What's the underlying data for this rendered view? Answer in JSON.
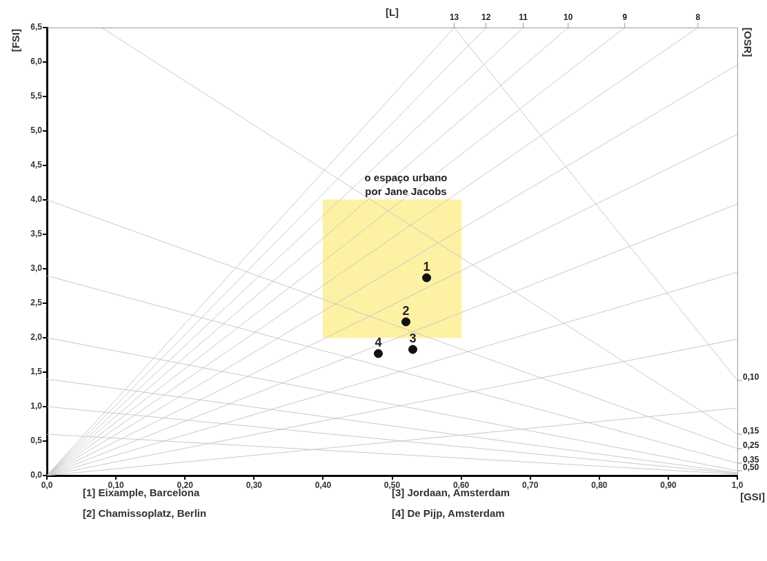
{
  "chart_data": {
    "type": "scatter",
    "xlabel": "[GSI]",
    "ylabel": "[FSI]",
    "x2label": "[L]",
    "y2label": "[OSR]",
    "xlim": [
      0,
      1
    ],
    "ylim": [
      0,
      6.5
    ],
    "xticks": [
      {
        "value": 0,
        "label": "0,0"
      },
      {
        "value": 0.1,
        "label": "0,10"
      },
      {
        "value": 0.2,
        "label": "0,20"
      },
      {
        "value": 0.3,
        "label": "0,30"
      },
      {
        "value": 0.4,
        "label": "0,40"
      },
      {
        "value": 0.5,
        "label": "0,50"
      },
      {
        "value": 0.6,
        "label": "0,60"
      },
      {
        "value": 0.7,
        "label": "0,70"
      },
      {
        "value": 0.8,
        "label": "0,80"
      },
      {
        "value": 0.9,
        "label": "0,90"
      },
      {
        "value": 1,
        "label": "1,0"
      }
    ],
    "yticks": [
      {
        "value": 0,
        "label": "0,0"
      },
      {
        "value": 0.5,
        "label": "0,5"
      },
      {
        "value": 1,
        "label": "1,0"
      },
      {
        "value": 1.5,
        "label": "1,5"
      },
      {
        "value": 2,
        "label": "2,0"
      },
      {
        "value": 2.5,
        "label": "2,5"
      },
      {
        "value": 3,
        "label": "3,0"
      },
      {
        "value": 3.5,
        "label": "3,5"
      },
      {
        "value": 4,
        "label": "4,0"
      },
      {
        "value": 4.5,
        "label": "4,5"
      },
      {
        "value": 5,
        "label": "5,0"
      },
      {
        "value": 5.5,
        "label": "5,5"
      },
      {
        "value": 6,
        "label": "6,0"
      },
      {
        "value": 6.5,
        "label": "6,5"
      }
    ],
    "series": [
      {
        "type": "area",
        "color": "#fdf2a3",
        "x": [
          0.4,
          0.4,
          0.6,
          0.6,
          0.4
        ],
        "values": [
          2,
          4,
          4,
          2,
          2
        ]
      },
      {
        "type": "line",
        "color": "#c8c8c8",
        "marker": "none",
        "x": [
          0,
          0.59
        ],
        "values": [
          0,
          6.5
        ]
      },
      {
        "type": "line",
        "color": "#c8c8c8",
        "marker": "none",
        "x": [
          0,
          0.636
        ],
        "values": [
          0,
          6.5
        ]
      },
      {
        "type": "line",
        "color": "#c8c8c8",
        "marker": "none",
        "x": [
          0,
          0.69
        ],
        "values": [
          0,
          6.5
        ]
      },
      {
        "type": "line",
        "color": "#c8c8c8",
        "marker": "none",
        "x": [
          0,
          0.755
        ],
        "values": [
          0,
          6.5
        ]
      },
      {
        "type": "line",
        "color": "#c8c8c8",
        "marker": "none",
        "x": [
          0,
          0.837
        ],
        "values": [
          0,
          6.5
        ]
      },
      {
        "type": "line",
        "color": "#c8c8c8",
        "marker": "none",
        "x": [
          0,
          0.943
        ],
        "values": [
          0,
          6.5
        ]
      },
      {
        "type": "line",
        "color": "#c8c8c8",
        "marker": "none",
        "x": [
          0,
          1
        ],
        "values": [
          0,
          5.96
        ]
      },
      {
        "type": "line",
        "color": "#c8c8c8",
        "marker": "none",
        "x": [
          0,
          1
        ],
        "values": [
          0,
          4.95
        ]
      },
      {
        "type": "line",
        "color": "#c8c8c8",
        "marker": "none",
        "x": [
          0,
          1
        ],
        "values": [
          0,
          3.94
        ]
      },
      {
        "type": "line",
        "color": "#c8c8c8",
        "marker": "none",
        "x": [
          0,
          1
        ],
        "values": [
          0,
          2.95
        ]
      },
      {
        "type": "line",
        "color": "#c8c8c8",
        "marker": "none",
        "x": [
          0,
          1
        ],
        "values": [
          0,
          1.98
        ]
      },
      {
        "type": "line",
        "color": "#c8c8c8",
        "marker": "none",
        "x": [
          0,
          1
        ],
        "values": [
          0,
          0.98
        ]
      },
      {
        "type": "line",
        "color": "#c8c8c8",
        "marker": "none",
        "x": [
          0.079,
          1
        ],
        "values": [
          6.5,
          0.6
        ]
      },
      {
        "type": "line",
        "color": "#c8c8c8",
        "marker": "none",
        "x": [
          0.59,
          1
        ],
        "values": [
          6.5,
          1.38
        ]
      },
      {
        "type": "line",
        "color": "#c8c8c8",
        "marker": "none",
        "x": [
          0,
          1
        ],
        "values": [
          4,
          0.39
        ]
      },
      {
        "type": "line",
        "color": "#c8c8c8",
        "marker": "none",
        "x": [
          0,
          1
        ],
        "values": [
          2.9,
          0.18
        ]
      },
      {
        "type": "line",
        "color": "#c8c8c8",
        "marker": "none",
        "x": [
          0,
          1
        ],
        "values": [
          2,
          0.07
        ]
      },
      {
        "type": "line",
        "color": "#c8c8c8",
        "marker": "none",
        "x": [
          0,
          1
        ],
        "values": [
          1.4,
          0.04
        ]
      },
      {
        "type": "line",
        "color": "#c8c8c8",
        "marker": "none",
        "x": [
          0,
          1
        ],
        "values": [
          1,
          0.03
        ]
      },
      {
        "type": "line",
        "color": "#c8c8c8",
        "marker": "none",
        "x": [
          0,
          1
        ],
        "values": [
          0.6,
          0.02
        ]
      },
      {
        "color": "#111111",
        "marker": "circle",
        "x": [
          0.55,
          0.52,
          0.53,
          0.48
        ],
        "values": [
          2.87,
          2.23,
          1.83,
          1.77
        ]
      }
    ],
    "annotations": [
      {
        "text": "o espaço urbano\npor Jane Jacobs",
        "x": 0.52,
        "y": 4
      },
      {
        "text": "1",
        "x": 0.55,
        "y": 2.87
      },
      {
        "text": "2",
        "x": 0.52,
        "y": 2.23
      },
      {
        "text": "3",
        "x": 0.53,
        "y": 1.83
      },
      {
        "text": "4",
        "x": 0.48,
        "y": 1.77
      },
      {
        "text": "13",
        "x": 0.59,
        "y": 6.5
      },
      {
        "text": "12",
        "x": 0.636,
        "y": 6.5
      },
      {
        "text": "11",
        "x": 0.69,
        "y": 6.5
      },
      {
        "text": "10",
        "x": 0.755,
        "y": 6.5
      },
      {
        "text": "9",
        "x": 0.837,
        "y": 6.5
      },
      {
        "text": "8",
        "x": 0.943,
        "y": 6.5
      },
      {
        "text": "0,10",
        "x": 1,
        "y": 1.38
      },
      {
        "text": "0,15",
        "x": 1,
        "y": 0.6
      },
      {
        "text": "0,25",
        "x": 1,
        "y": 0.39
      },
      {
        "text": "0,35",
        "x": 1,
        "y": 0.18
      },
      {
        "text": "0,50",
        "x": 1,
        "y": 0.07
      },
      "[1] Eixample, Barcelona",
      "[2] Chamissoplatz, Berlin",
      "[3] Jordaan, Amsterdam",
      "[4] De Pijp, Amsterdam"
    ]
  }
}
